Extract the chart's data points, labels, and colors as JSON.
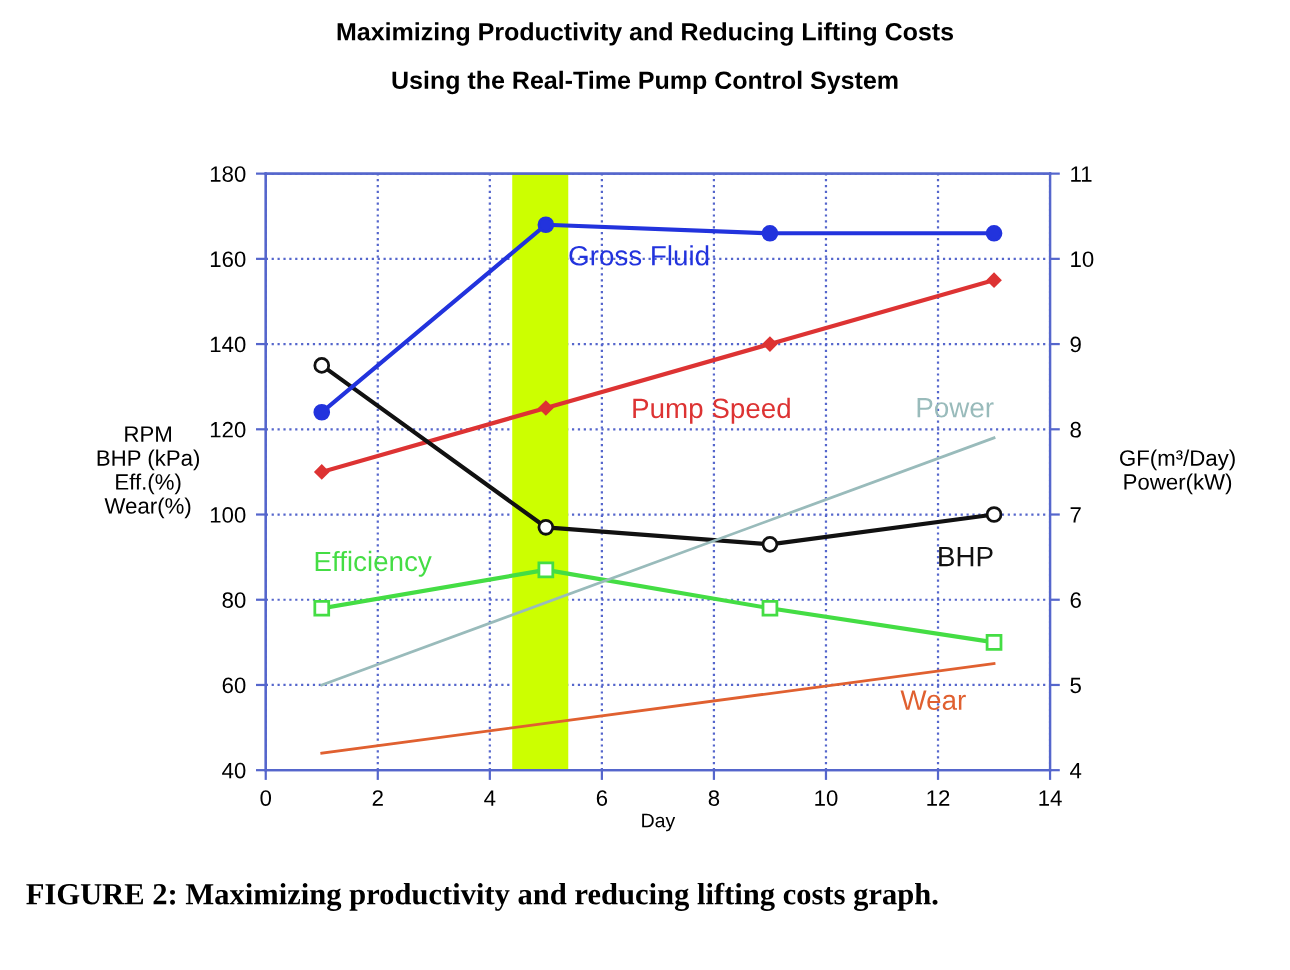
{
  "chart_data": {
    "type": "line",
    "title": "Maximizing Productivity and Reducing Lifting Costs",
    "subtitle": "Using the Real-Time Pump Control System",
    "xlabel": "Day",
    "ylabel": "RPM\nBHP (kPa)\nEff.(%)\nWear(%)",
    "y2label": "GF(m³/Day)\nPower(kW)",
    "xlim": [
      0,
      14
    ],
    "xticks": [
      0,
      2,
      4,
      6,
      8,
      10,
      12,
      14
    ],
    "ylim": [
      40,
      180
    ],
    "yticks": [
      40,
      60,
      80,
      100,
      120,
      140,
      160,
      180
    ],
    "y2lim": [
      4,
      11
    ],
    "y2ticks": [
      4,
      5,
      6,
      7,
      8,
      9,
      10,
      11
    ],
    "grid": true,
    "series": [
      {
        "name": "Gross Fluid",
        "color": "#2233dd",
        "axis": "y2",
        "marker": "circle",
        "x": [
          1,
          5,
          9,
          13
        ],
        "values": [
          8.2,
          10.4,
          10.3,
          10.3
        ]
      },
      {
        "name": "Pump Speed",
        "color": "#dd3333",
        "marker": "diamond",
        "x": [
          1,
          5,
          9,
          13
        ],
        "values": [
          110,
          125,
          140,
          155
        ]
      },
      {
        "name": "Power",
        "color": "#99bbbb",
        "axis": "y2",
        "marker": "none",
        "x": [
          1,
          13
        ],
        "values": [
          5.0,
          7.9
        ]
      },
      {
        "name": "BHP",
        "color": "#111111",
        "marker": "circle",
        "x": [
          1,
          5,
          9,
          13
        ],
        "values": [
          135,
          97,
          93,
          100
        ]
      },
      {
        "name": "Efficiency",
        "color": "#44dd44",
        "marker": "square",
        "x": [
          1,
          5,
          9,
          13
        ],
        "values": [
          78,
          87,
          78,
          70
        ]
      },
      {
        "name": "Wear",
        "color": "#e06030",
        "marker": "none",
        "x": [
          1,
          13
        ],
        "values": [
          44,
          65
        ]
      }
    ],
    "bands": [
      {
        "axis": "x",
        "from": 4.4,
        "to": 5.4,
        "color": "#ccff00"
      }
    ],
    "annotations": [
      "FIGURE 2: Maximizing productivity and reducing lifting costs graph."
    ]
  }
}
